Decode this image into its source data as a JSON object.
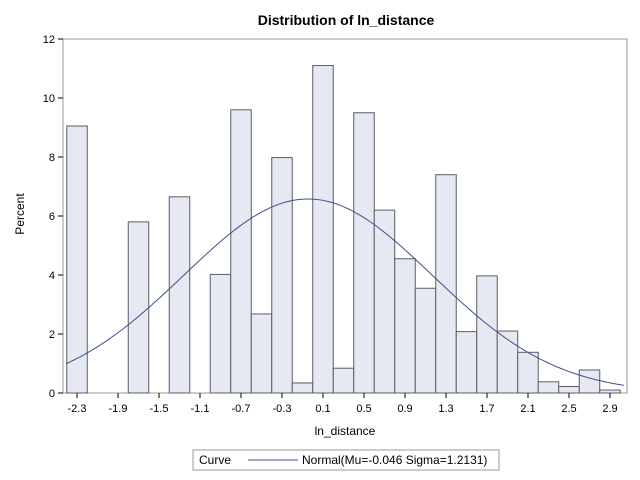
{
  "chart_data": {
    "type": "bar",
    "title": "Distribution of ln_distance",
    "xlabel": "ln_distance",
    "ylabel": "Percent",
    "ylim": [
      0,
      12
    ],
    "yticks": [
      0,
      2,
      4,
      6,
      8,
      10,
      12
    ],
    "xlim": [
      -2.5,
      3.0
    ],
    "xticks": [
      -2.3,
      -1.9,
      -1.5,
      -1.1,
      -0.7,
      -0.3,
      0.1,
      0.5,
      0.9,
      1.3,
      1.7,
      2.1,
      2.5,
      2.9
    ],
    "xtick_labels": [
      "-2.3",
      "-1.9",
      "-1.5",
      "-1.1",
      "-0.7",
      "-0.3",
      "0.1",
      "0.5",
      "0.9",
      "1.3",
      "1.7",
      "2.1",
      "2.5",
      "2.9"
    ],
    "bin_width": 0.2,
    "bins": [
      {
        "center": -2.3,
        "value": 9.05
      },
      {
        "center": -1.7,
        "value": 5.8
      },
      {
        "center": -1.3,
        "value": 6.65
      },
      {
        "center": -0.9,
        "value": 4.02
      },
      {
        "center": -0.7,
        "value": 9.6
      },
      {
        "center": -0.5,
        "value": 2.68
      },
      {
        "center": -0.3,
        "value": 7.98
      },
      {
        "center": -0.1,
        "value": 0.34
      },
      {
        "center": 0.1,
        "value": 11.1
      },
      {
        "center": 0.3,
        "value": 0.84
      },
      {
        "center": 0.5,
        "value": 9.5
      },
      {
        "center": 0.7,
        "value": 6.2
      },
      {
        "center": 0.9,
        "value": 4.55
      },
      {
        "center": 1.1,
        "value": 3.55
      },
      {
        "center": 1.3,
        "value": 7.4
      },
      {
        "center": 1.5,
        "value": 2.08
      },
      {
        "center": 1.7,
        "value": 3.97
      },
      {
        "center": 1.9,
        "value": 2.1
      },
      {
        "center": 2.1,
        "value": 1.38
      },
      {
        "center": 2.3,
        "value": 0.38
      },
      {
        "center": 2.5,
        "value": 0.22
      },
      {
        "center": 2.7,
        "value": 0.78
      },
      {
        "center": 2.9,
        "value": 0.1
      }
    ],
    "curve": {
      "type": "normal",
      "mu": -0.046,
      "sigma": 1.2131,
      "label": "Normal(Mu=-0.046 Sigma=1.2131)"
    },
    "legend": {
      "title": "Curve",
      "position": "bottom"
    },
    "colors": {
      "bar_fill": "#e6e9f1",
      "bar_stroke": "#5a5d66",
      "curve": "#3e4f8c",
      "frame": "#9a9a9a"
    },
    "grid": false
  }
}
